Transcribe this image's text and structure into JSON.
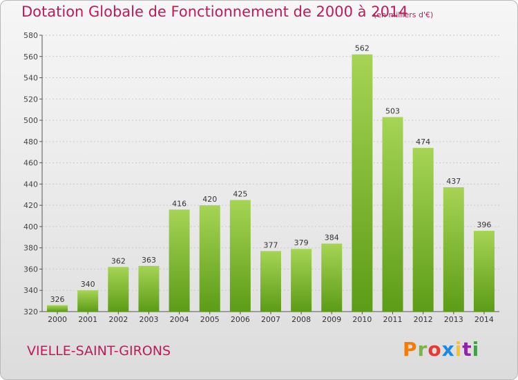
{
  "header": {
    "title": "Dotation Globale de Fonctionnement de 2000 à 2014",
    "unit": "(en milliers d'€)"
  },
  "footer": {
    "commune": "VIELLE-SAINT-GIRONS",
    "logo_text": "Proxiti"
  },
  "colors": {
    "title": "#c2185b",
    "bar_top": "#a6d455",
    "bar_bottom": "#5c9c16",
    "logo_letters": [
      "#f57c00",
      "#7cb342",
      "#e53935",
      "#1e88e5",
      "#fbc02d",
      "#8e24aa",
      "#43a047"
    ]
  },
  "chart_data": {
    "type": "bar",
    "title": "Dotation Globale de Fonctionnement de 2000 à 2014",
    "subtitle": "(en milliers d'€)",
    "categories": [
      "2000",
      "2001",
      "2002",
      "2003",
      "2004",
      "2005",
      "2006",
      "2007",
      "2008",
      "2009",
      "2010",
      "2011",
      "2012",
      "2013",
      "2014"
    ],
    "values": [
      326,
      340,
      362,
      363,
      416,
      420,
      425,
      377,
      379,
      384,
      562,
      503,
      474,
      437,
      396
    ],
    "xlabel": "",
    "ylabel": "",
    "ylim": [
      320,
      580
    ],
    "yticks": [
      320,
      340,
      360,
      380,
      400,
      420,
      440,
      460,
      480,
      500,
      520,
      540,
      560,
      580
    ],
    "grid": true,
    "legend": "none"
  }
}
